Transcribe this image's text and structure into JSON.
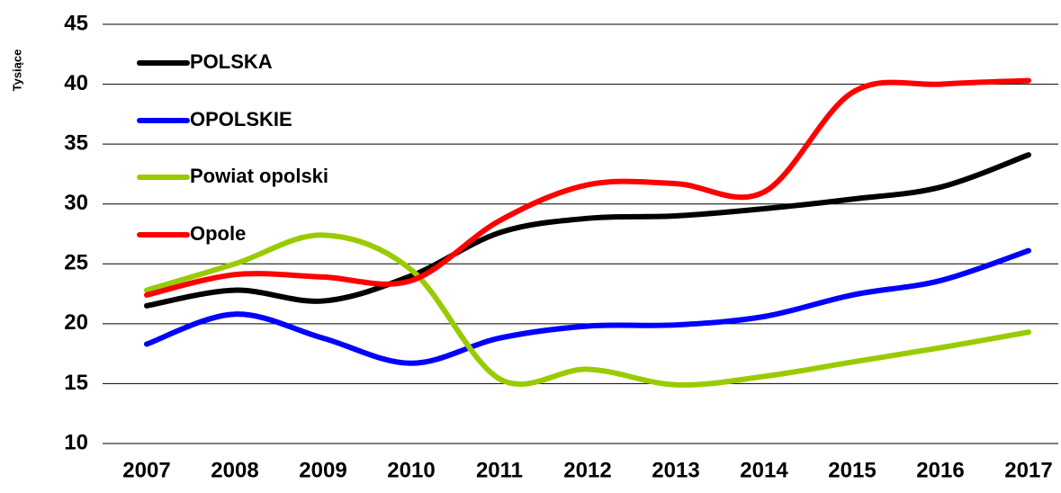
{
  "chart_data": {
    "type": "line",
    "y_label": "Tysiące",
    "categories": [
      "2007",
      "2008",
      "2009",
      "2010",
      "2011",
      "2012",
      "2013",
      "2014",
      "2015",
      "2016",
      "2017"
    ],
    "series": [
      {
        "name": "POLSKA",
        "color": "#000000",
        "values": [
          21.5,
          22.8,
          21.9,
          24.0,
          27.6,
          28.8,
          29.0,
          29.6,
          30.4,
          31.4,
          34.1
        ]
      },
      {
        "name": "OPOLSKIE",
        "color": "#0000ff",
        "values": [
          18.3,
          20.8,
          18.8,
          16.7,
          18.8,
          19.8,
          19.9,
          20.6,
          22.4,
          23.6,
          26.1
        ]
      },
      {
        "name": "Powiat opolski",
        "color": "#99cc00",
        "values": [
          22.8,
          25.0,
          27.4,
          24.5,
          15.4,
          16.2,
          14.9,
          15.6,
          16.8,
          18.0,
          19.3
        ]
      },
      {
        "name": "Opole",
        "color": "#ff0000",
        "values": [
          22.4,
          24.1,
          23.9,
          23.6,
          28.6,
          31.6,
          31.7,
          31.0,
          39.3,
          40.0,
          40.3
        ]
      }
    ],
    "ylim": [
      10,
      45
    ],
    "yticks": [
      10,
      15,
      20,
      25,
      30,
      35,
      40,
      45
    ],
    "grid": true,
    "legend": "top-left"
  }
}
